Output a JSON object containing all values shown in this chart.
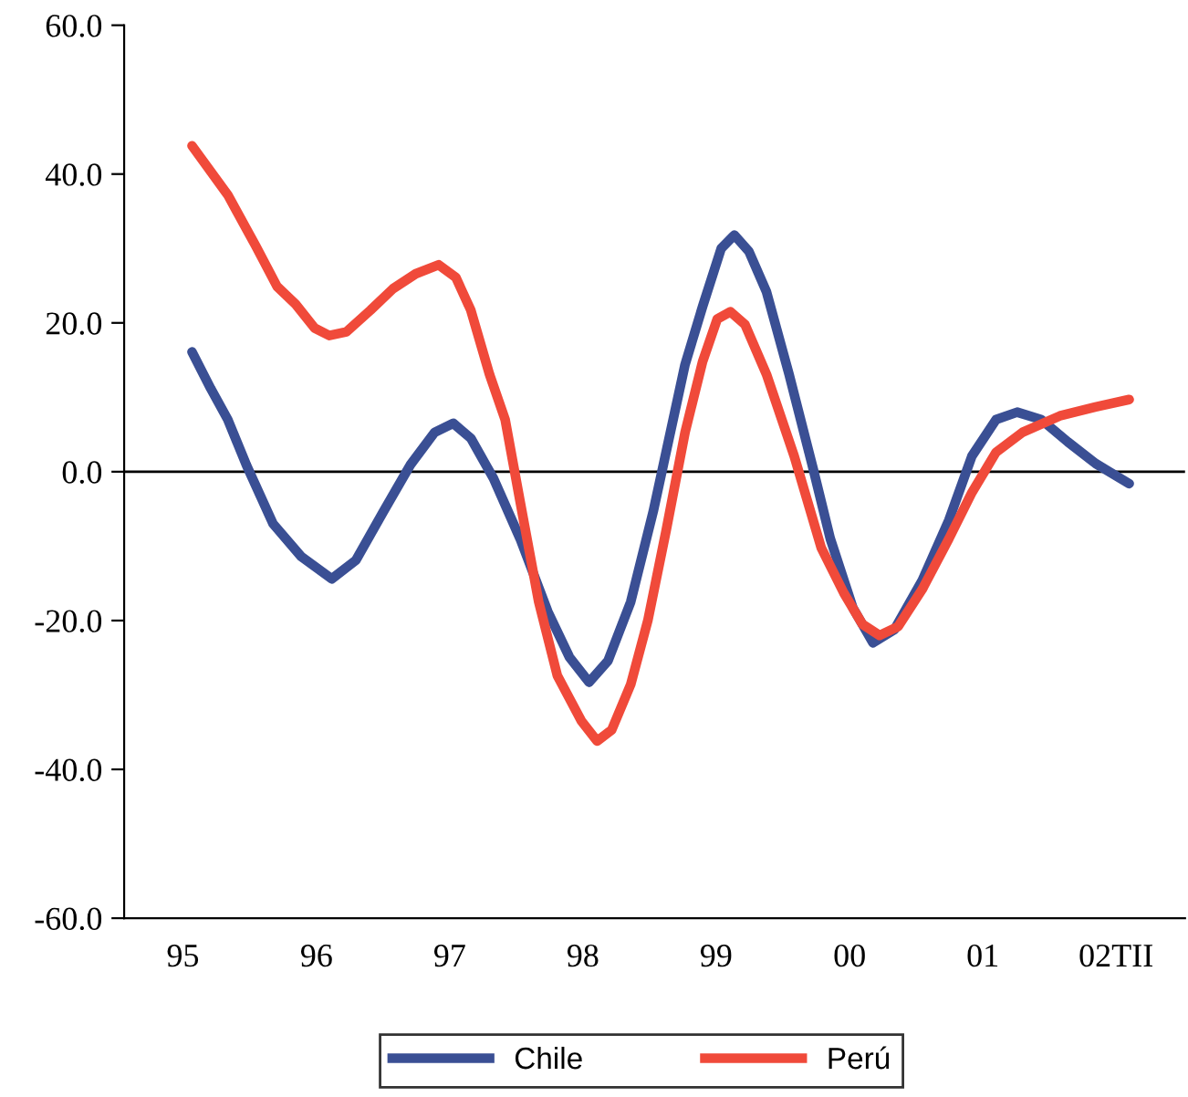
{
  "chart_data": {
    "type": "line",
    "xlim": [
      "1994-10-22",
      "2002-10-07"
    ],
    "xticks": [
      {
        "value": "1995-04-01",
        "label": "95"
      },
      {
        "value": "1996-04-01",
        "label": "96"
      },
      {
        "value": "1997-04-01",
        "label": "97"
      },
      {
        "value": "1998-04-01",
        "label": "98"
      },
      {
        "value": "1999-04-01",
        "label": "99"
      },
      {
        "value": "2000-04-01",
        "label": "00"
      },
      {
        "value": "2001-04-01",
        "label": "01"
      },
      {
        "value": "2002-04-01",
        "label": "02TII"
      }
    ],
    "ylim": [
      -60,
      60
    ],
    "yticks": [
      {
        "value": -60,
        "label": "-60.0"
      },
      {
        "value": -40,
        "label": "-40.0"
      },
      {
        "value": -20,
        "label": "-20.0"
      },
      {
        "value": 0,
        "label": "0.0"
      },
      {
        "value": 20,
        "label": "20.0"
      },
      {
        "value": 40,
        "label": "40.0"
      },
      {
        "value": 60,
        "label": "60.0"
      }
    ],
    "grid": false,
    "legend": "bottom",
    "marker": "none",
    "line_style": "solid",
    "ref_lines": [
      {
        "axis": "y",
        "value": 0,
        "color": "#000000"
      }
    ],
    "series": [
      {
        "name": "Chile",
        "color": "#3a4f94",
        "x": [
          "1995-04-26",
          "1995-06-16",
          "1995-08-02",
          "1995-09-22",
          "1995-12-04",
          "1996-02-19",
          "1996-05-13",
          "1996-07-18",
          "1996-10-02",
          "1996-12-14",
          "1997-02-19",
          "1997-04-11",
          "1997-05-29",
          "1997-07-30",
          "1997-10-11",
          "1997-12-26",
          "1998-02-23",
          "1998-04-18",
          "1998-06-09",
          "1998-08-10",
          "1998-10-11",
          "1999-01-06",
          "1999-02-23",
          "1999-04-15",
          "1999-05-21",
          "1999-06-30",
          "1999-08-17",
          "1999-10-18",
          "1999-12-23",
          "2000-02-08",
          "2000-04-10",
          "2000-06-04",
          "2000-08-02",
          "2000-10-17",
          "2000-12-29",
          "2001-03-02",
          "2001-05-07",
          "2001-07-04",
          "2001-09-08",
          "2001-11-20",
          "2002-02-04",
          "2002-05-07"
        ],
        "values": [
          16.1,
          11.2,
          7.0,
          0.9,
          -7.0,
          -11.4,
          -14.4,
          -11.9,
          -5.3,
          0.9,
          5.3,
          6.5,
          4.5,
          -0.9,
          -9.0,
          -18.8,
          -24.9,
          -28.3,
          -25.4,
          -17.5,
          -5.3,
          14.4,
          22.2,
          30.0,
          31.8,
          29.6,
          24.2,
          13.1,
          0.4,
          -9.0,
          -18.3,
          -23.0,
          -21.2,
          -14.6,
          -6.5,
          2.1,
          7.0,
          8.0,
          7.0,
          4.0,
          1.1,
          -1.6
        ]
      },
      {
        "name": "Perú",
        "color": "#f04a3a",
        "x": [
          "1995-04-26",
          "1995-08-02",
          "1995-10-18",
          "1995-12-15",
          "1996-02-04",
          "1996-03-27",
          "1996-05-06",
          "1996-06-22",
          "1996-08-27",
          "1996-10-28",
          "1996-12-29",
          "1997-03-02",
          "1997-04-18",
          "1997-05-29",
          "1997-07-19",
          "1997-08-31",
          "1997-10-11",
          "1997-12-01",
          "1998-01-21",
          "1998-03-28",
          "1998-05-10",
          "1998-06-19",
          "1998-08-10",
          "1998-09-26",
          "1998-11-16",
          "1999-01-06",
          "1999-02-23",
          "1999-04-04",
          "1999-05-10",
          "1999-06-19",
          "1999-08-17",
          "1999-11-01",
          "2000-01-14",
          "2000-03-16",
          "2000-05-06",
          "2000-06-22",
          "2000-08-12",
          "2000-10-17",
          "2000-12-29",
          "2001-03-02",
          "2001-05-07",
          "2001-07-19",
          "2001-10-29",
          "2002-02-04",
          "2002-05-07"
        ],
        "values": [
          43.8,
          37.2,
          30.3,
          24.9,
          22.5,
          19.3,
          18.3,
          18.8,
          21.7,
          24.6,
          26.6,
          27.8,
          26.1,
          21.7,
          13.1,
          7.0,
          -4.0,
          -17.5,
          -27.4,
          -33.5,
          -36.2,
          -34.7,
          -28.6,
          -20.0,
          -7.7,
          5.3,
          14.8,
          20.5,
          21.5,
          19.8,
          13.1,
          2.1,
          -10.2,
          -16.3,
          -20.5,
          -22.0,
          -20.8,
          -15.8,
          -9.0,
          -2.8,
          2.6,
          5.3,
          7.5,
          8.7,
          9.7
        ]
      }
    ]
  }
}
